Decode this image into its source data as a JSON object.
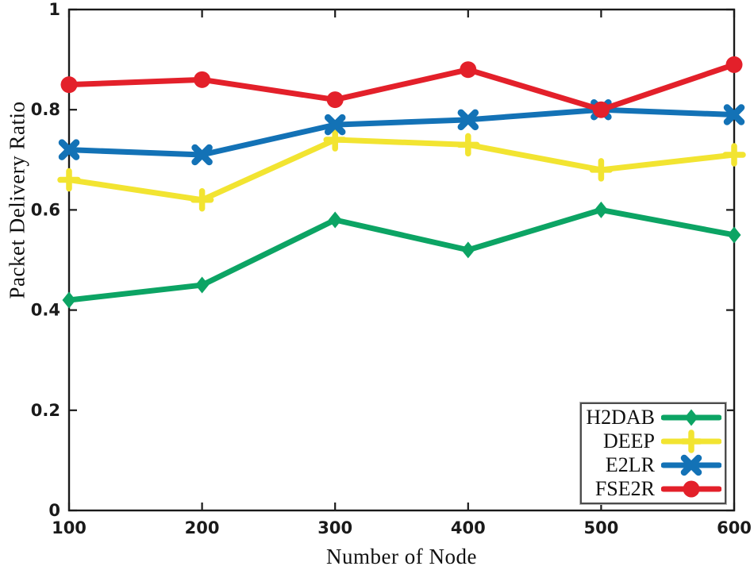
{
  "figure": {
    "background": "#ffffff",
    "axis_color": "#1a1a1a"
  },
  "chart_data": {
    "type": "line",
    "title": "",
    "xlabel": "Number of Node",
    "ylabel": "Packet Delivery Ratio",
    "x": [
      100,
      200,
      300,
      400,
      500,
      600
    ],
    "categories": [
      "100",
      "200",
      "300",
      "400",
      "500",
      "600"
    ],
    "xlim": [
      100,
      600
    ],
    "ylim": [
      0,
      1
    ],
    "y_ticks": [
      0,
      0.2,
      0.4,
      0.6,
      0.8,
      1
    ],
    "y_tick_labels": [
      "0",
      "0.2",
      "0.4",
      "0.6",
      "0.8",
      "1"
    ],
    "grid": false,
    "legend_position": "bottom-right",
    "series": [
      {
        "name": "H2DAB",
        "color": "#0ca464",
        "marker": "diamond",
        "values": [
          0.42,
          0.45,
          0.58,
          0.52,
          0.6,
          0.55
        ]
      },
      {
        "name": "DEEP",
        "color": "#f2e431",
        "marker": "plus",
        "values": [
          0.66,
          0.62,
          0.74,
          0.73,
          0.68,
          0.71
        ]
      },
      {
        "name": "E2LR",
        "color": "#1372b6",
        "marker": "x",
        "values": [
          0.72,
          0.71,
          0.77,
          0.78,
          0.8,
          0.79
        ]
      },
      {
        "name": "FSE2R",
        "color": "#e3202a",
        "marker": "circle",
        "values": [
          0.85,
          0.86,
          0.82,
          0.88,
          0.8,
          0.89
        ]
      }
    ]
  }
}
